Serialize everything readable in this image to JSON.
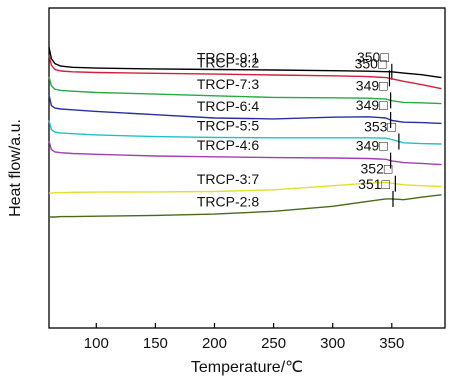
{
  "chart_data": {
    "type": "line",
    "title": "",
    "xlabel": "Temperature/℃",
    "ylabel": "Heat flow/a.u.",
    "xlim": [
      60,
      395
    ],
    "xticks": [
      100,
      150,
      200,
      250,
      300,
      350,
      400
    ],
    "grid": false,
    "y_tick_labels": false,
    "series": [
      {
        "name": "TRCP-9:1",
        "color": "#000000",
        "annotation": "350□",
        "marker_x": 350,
        "x": [
          60,
          62,
          65,
          70,
          80,
          100,
          150,
          200,
          250,
          300,
          330,
          345,
          350,
          360,
          375,
          392
        ],
        "y": [
          34,
          20,
          14,
          11,
          9.5,
          8.5,
          7.5,
          6.8,
          6.2,
          5.4,
          4.8,
          4.2,
          4.0,
          2.5,
          0.5,
          -3.0
        ]
      },
      {
        "name": "TRCP-8:2",
        "color": "#d0203a",
        "annotation": "350□",
        "marker_x": 348,
        "x": [
          60,
          62,
          65,
          70,
          80,
          100,
          150,
          200,
          250,
          300,
          330,
          345,
          350,
          360,
          375,
          392
        ],
        "y": [
          24,
          12,
          7,
          5,
          4,
          3.2,
          2.2,
          1.2,
          0.2,
          -0.8,
          -1.8,
          -3.0,
          -4.5,
          -7.5,
          -11.5,
          -16.5
        ]
      },
      {
        "name": "TRCP-7:3",
        "color": "#2aa845",
        "annotation": "349□",
        "marker_x": 349,
        "x": [
          60,
          62,
          65,
          70,
          80,
          100,
          150,
          200,
          250,
          300,
          330,
          345,
          350,
          360,
          375,
          392
        ],
        "y": [
          -2,
          -13,
          -17,
          -18.5,
          -19.5,
          -21,
          -23,
          -25,
          -27,
          -27.5,
          -28,
          -29,
          -31,
          -33,
          -33.5,
          -34.5
        ]
      },
      {
        "name": "TRCP-6:4",
        "color": "#2a2fa0",
        "annotation": "349□",
        "marker_x": 349,
        "x": [
          60,
          62,
          65,
          70,
          80,
          100,
          150,
          200,
          250,
          300,
          330,
          345,
          350,
          360,
          375,
          392
        ],
        "y": [
          -24,
          -37,
          -40,
          -41,
          -42,
          -44,
          -48,
          -52,
          -53,
          -51,
          -50.5,
          -52,
          -55,
          -57,
          -57.5,
          -58.5
        ]
      },
      {
        "name": "TRCP-5:5",
        "color": "#20c0c8",
        "annotation": "353□",
        "marker_x": 356,
        "x": [
          60,
          62,
          65,
          70,
          80,
          100,
          150,
          200,
          250,
          300,
          330,
          345,
          350,
          360,
          375,
          392
        ],
        "y": [
          -55,
          -66,
          -69,
          -70,
          -71,
          -72.5,
          -74.5,
          -75.5,
          -76,
          -76,
          -76,
          -76.5,
          -78,
          -82,
          -83,
          -83.5
        ]
      },
      {
        "name": "TRCP-4:6",
        "color": "#a040b0",
        "annotation": "349□",
        "marker_x": 349,
        "x": [
          60,
          62,
          65,
          70,
          80,
          100,
          150,
          200,
          250,
          300,
          330,
          345,
          350,
          360,
          375,
          392
        ],
        "y": [
          -80,
          -90,
          -93,
          -94,
          -95,
          -96,
          -98,
          -99,
          -100,
          -100.5,
          -101,
          -102,
          -104,
          -106,
          -107,
          -108.5
        ]
      },
      {
        "name": "TRCP-3:7",
        "color": "#e0e030",
        "annotation": "352□",
        "marker_x": 353,
        "x": [
          60,
          62,
          65,
          70,
          80,
          100,
          150,
          200,
          250,
          300,
          330,
          345,
          350,
          360,
          375,
          392
        ],
        "y": [
          -143,
          -143,
          -142.5,
          -142.5,
          -142,
          -141.8,
          -141.5,
          -141,
          -139,
          -134,
          -131,
          -130,
          -131,
          -133,
          -134,
          -135
        ]
      },
      {
        "name": "TRCP-2:8",
        "color": "#4a6a18",
        "annotation": "351□",
        "marker_x": 351,
        "x": [
          60,
          62,
          65,
          70,
          80,
          100,
          150,
          200,
          250,
          300,
          330,
          345,
          350,
          360,
          375,
          392
        ],
        "y": [
          -172,
          -172,
          -172,
          -171.5,
          -171.5,
          -171,
          -170,
          -168.5,
          -165,
          -159,
          -153,
          -150,
          -150,
          -151,
          -148,
          -145
        ]
      }
    ]
  }
}
